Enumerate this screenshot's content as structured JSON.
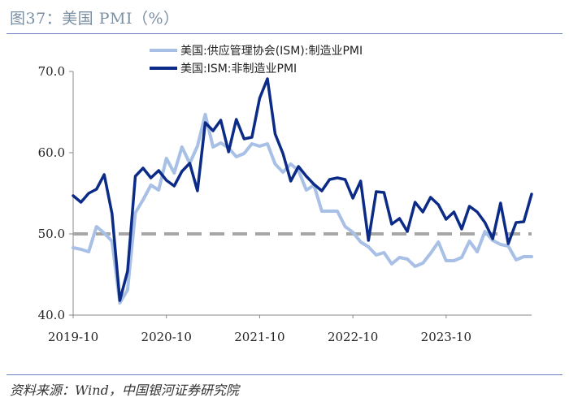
{
  "figure": {
    "title": "图37：美国 PMI（%）",
    "source": "资料来源：Wind，中国银河证券研究院"
  },
  "colors": {
    "manufacturing": "#a8c0e6",
    "services": "#0b2b86",
    "reference": "#a6a6a6",
    "axis": "#888888",
    "rule": "#6b80c2"
  },
  "chart_data": {
    "type": "line",
    "xlabel": "",
    "ylabel": "",
    "ylim": [
      40,
      70
    ],
    "yticks": [
      40,
      50,
      60,
      70
    ],
    "ytick_labels": [
      "40.0",
      "50.0",
      "60.0",
      "70.0"
    ],
    "xtick_labels": [
      "2019-10",
      "2020-10",
      "2021-10",
      "2022-10",
      "2023-10"
    ],
    "x_start": "2019-10",
    "x_end": "2024-10",
    "reference_line": 50,
    "grid": false,
    "legend": "top",
    "series": [
      {
        "name": "美国:供应管理协会(ISM):制造业PMI",
        "style": "light",
        "values": [
          48.3,
          48.1,
          47.8,
          50.9,
          50.1,
          49.1,
          41.5,
          43.1,
          52.6,
          54.2,
          56.0,
          55.4,
          59.3,
          57.5,
          60.7,
          58.7,
          60.8,
          64.7,
          60.7,
          61.2,
          60.6,
          59.5,
          59.9,
          61.1,
          60.8,
          61.1,
          58.6,
          57.6,
          58.6,
          57.8,
          55.4,
          56.0,
          52.8,
          52.8,
          52.8,
          50.9,
          50.2,
          49.0,
          48.4,
          47.4,
          47.7,
          46.3,
          47.1,
          46.9,
          46.0,
          46.4,
          47.6,
          49.0,
          46.7,
          46.7,
          47.1,
          49.1,
          47.8,
          50.3,
          49.2,
          48.7,
          48.5,
          46.8,
          47.2,
          47.2
        ]
      },
      {
        "name": "美国:ISM:非制造业PMI",
        "style": "dark",
        "values": [
          54.7,
          53.9,
          55.0,
          55.5,
          57.3,
          52.5,
          41.8,
          45.4,
          57.1,
          58.1,
          56.9,
          57.8,
          56.6,
          55.9,
          57.7,
          58.7,
          55.3,
          63.7,
          62.7,
          64.0,
          60.1,
          64.1,
          61.7,
          61.9,
          66.7,
          69.1,
          62.3,
          59.9,
          56.5,
          58.3,
          57.1,
          56.1,
          55.3,
          56.7,
          56.9,
          56.7,
          54.4,
          56.5,
          49.2,
          55.2,
          55.1,
          51.2,
          51.9,
          50.3,
          53.9,
          52.7,
          54.5,
          53.6,
          51.8,
          52.7,
          50.6,
          53.4,
          52.7,
          51.4,
          49.4,
          53.8,
          48.8,
          51.4,
          51.5,
          54.9
        ]
      }
    ]
  }
}
